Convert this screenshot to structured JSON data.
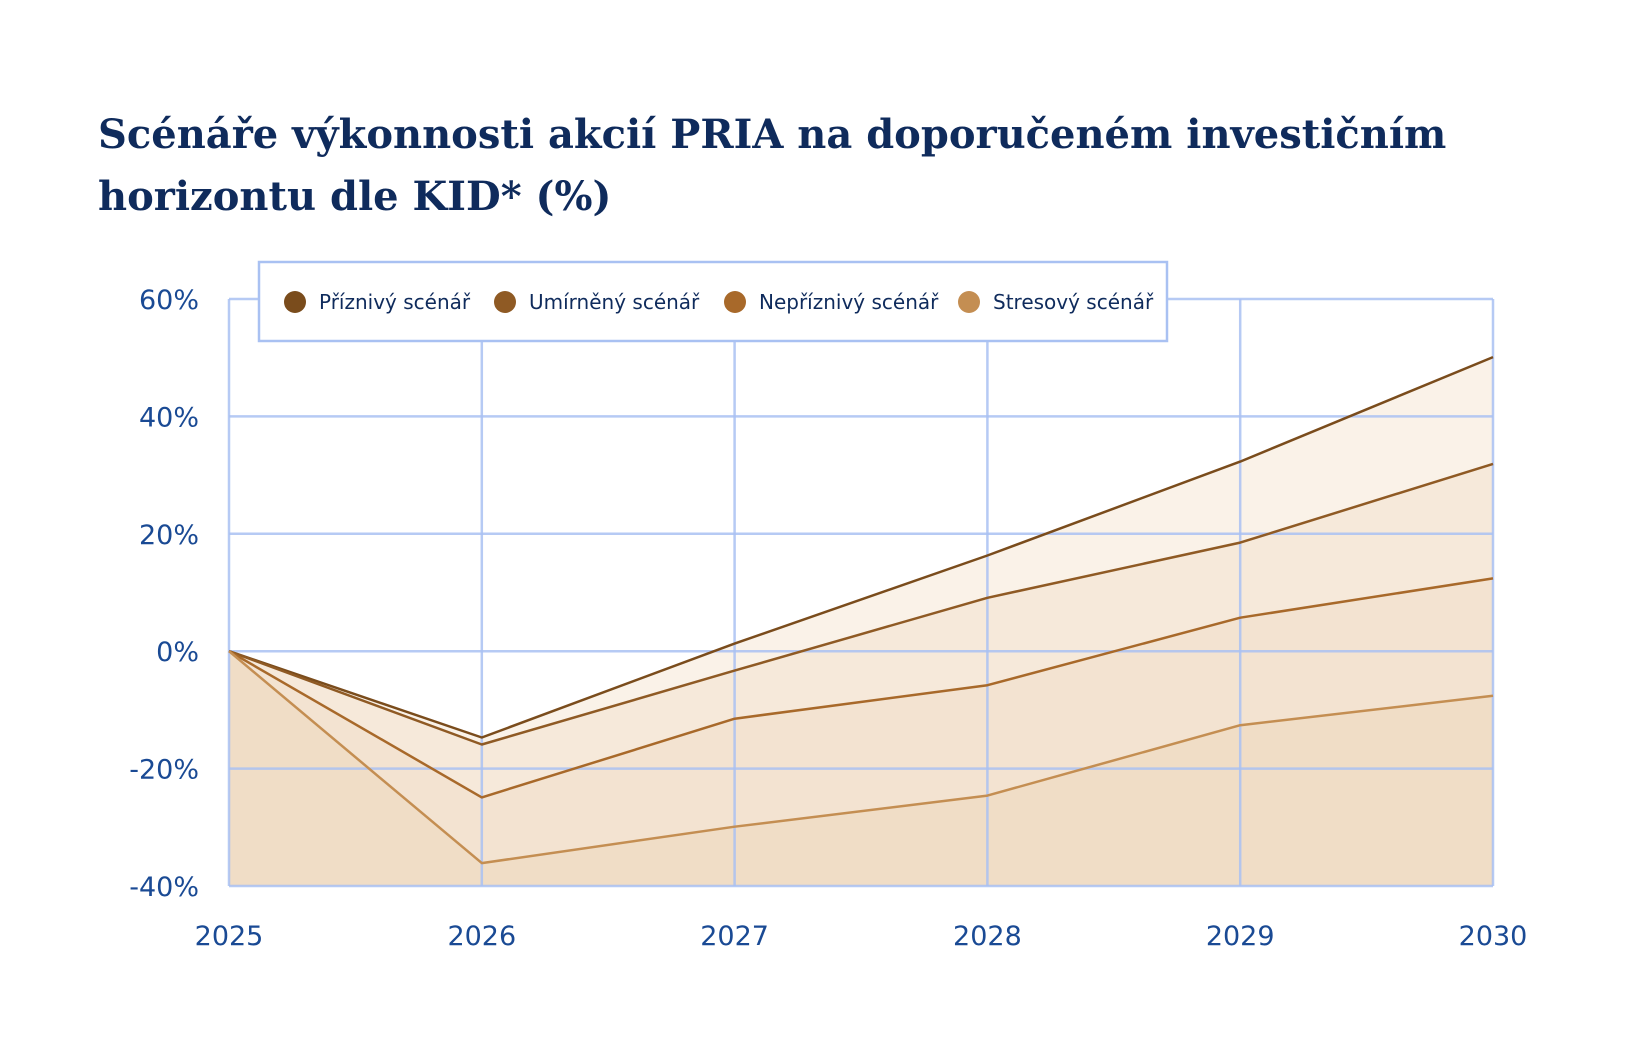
{
  "title": "Scénáře výkonnosti akcií PRIA na doporučeném investičním horizontu dle KID* (%)",
  "chart_data": {
    "type": "area",
    "x": [
      2025,
      2026,
      2027,
      2028,
      2029,
      2030
    ],
    "x_tick_labels": [
      "2025",
      "2026",
      "2027",
      "2028",
      "2029",
      "2030"
    ],
    "y_tick_labels": [
      "60%",
      "40%",
      "20%",
      "0%",
      "-20%",
      "-40%"
    ],
    "y_ticks": [
      60,
      40,
      20,
      0,
      -20,
      -40
    ],
    "ylim": [
      -40,
      60
    ],
    "grid": true,
    "legend_position": "top-left",
    "series": [
      {
        "name": "Příznivý scénář",
        "values": [
          0,
          -14.7,
          1.3,
          16.3,
          32.3,
          50.1
        ],
        "color": "#7a4c1c",
        "fill": "#faf2e8"
      },
      {
        "name": "Umírněný scénář",
        "values": [
          0,
          -15.9,
          -3.3,
          9.1,
          18.5,
          31.9
        ],
        "color": "#8f5a24",
        "fill": "#f6e9da"
      },
      {
        "name": "Nepříznivý scénář",
        "values": [
          0,
          -24.9,
          -11.5,
          -5.8,
          5.7,
          12.4
        ],
        "color": "#a8692a",
        "fill": "#f3e3d1"
      },
      {
        "name": "Stresový scénář",
        "values": [
          0,
          -36.1,
          -29.9,
          -24.6,
          -12.6,
          -7.6
        ],
        "color": "#c48e52",
        "fill": "#f0ddc6"
      }
    ]
  }
}
